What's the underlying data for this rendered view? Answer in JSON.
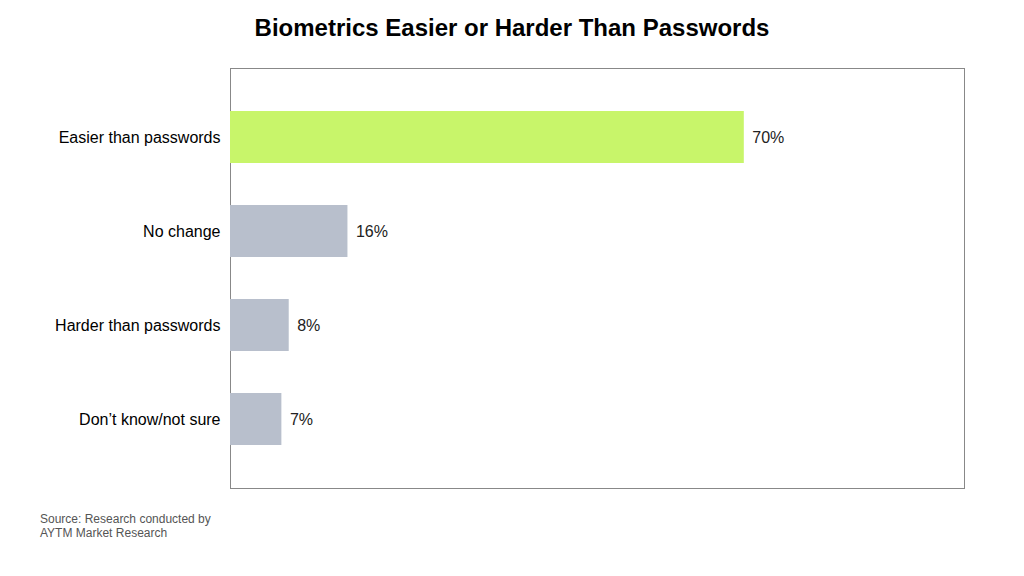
{
  "chart_data": {
    "type": "bar",
    "orientation": "horizontal",
    "title": "Biometrics Easier or Harder Than Passwords",
    "categories": [
      "Easier than passwords",
      "No change",
      "Harder than passwords",
      "Don’t know/not sure"
    ],
    "values": [
      70,
      16,
      8,
      7
    ],
    "value_labels": [
      "70%",
      "16%",
      "8%",
      "7%"
    ],
    "data_labels": true,
    "colors": [
      "#c8f56a",
      "#b8bfcc",
      "#b8bfcc",
      "#b8bfcc"
    ],
    "xlim": [
      0,
      100
    ],
    "tick_labels": "y",
    "grid": false,
    "annotations": [
      "Source: Research conducted by\nAYTM Market Research"
    ]
  }
}
